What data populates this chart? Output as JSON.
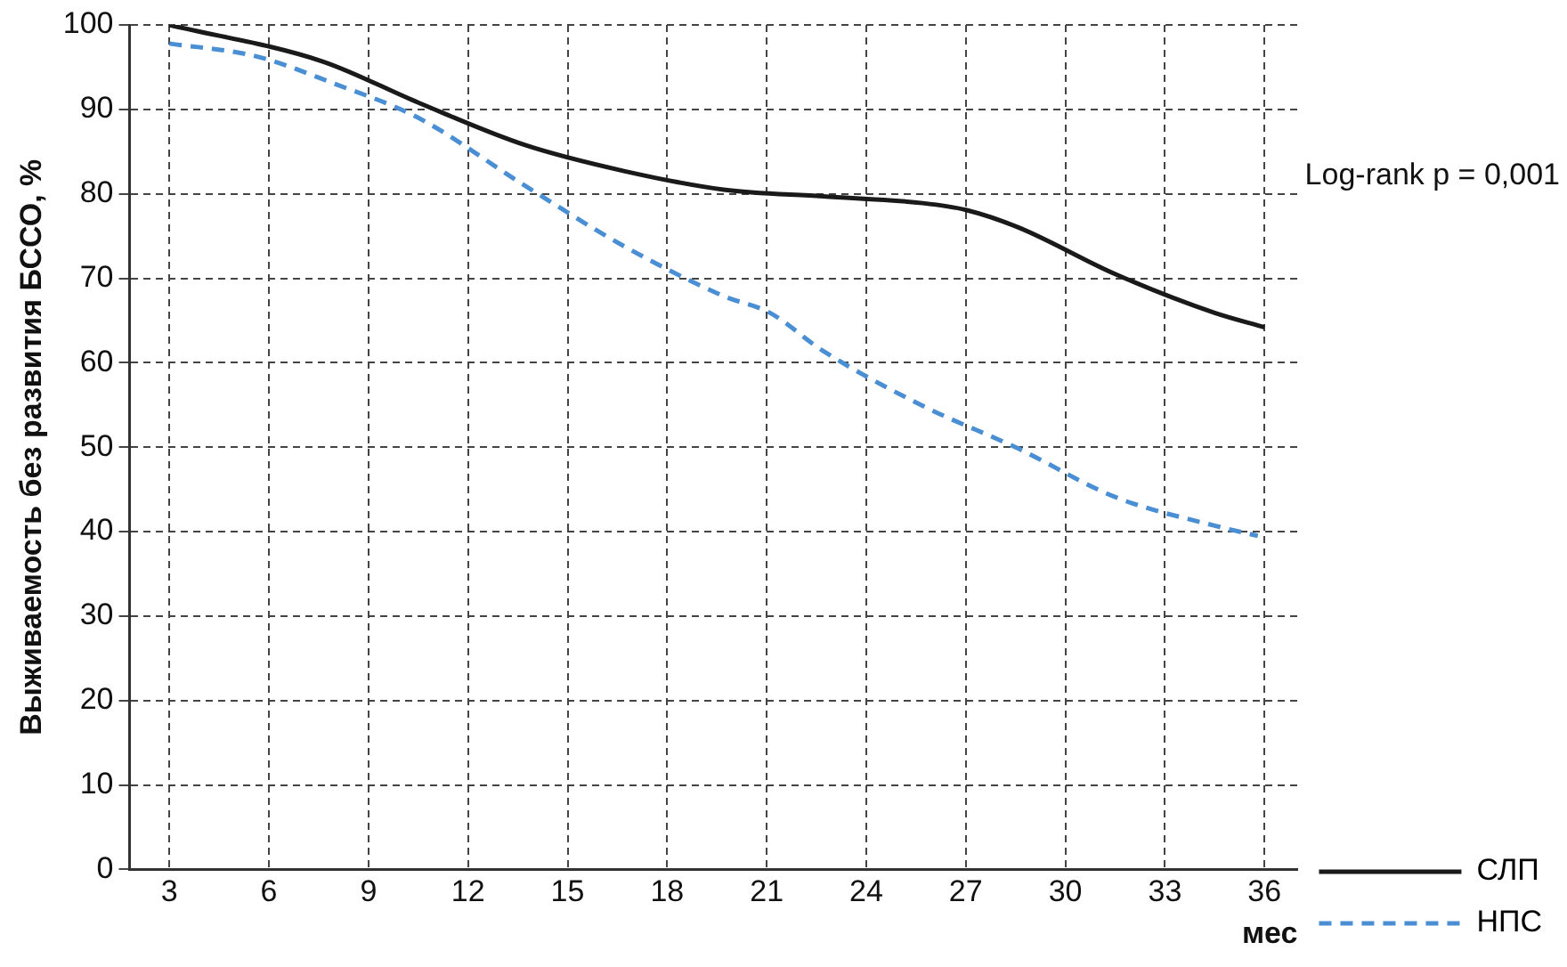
{
  "chart_data": {
    "type": "line",
    "ylabel": "Выживаемость без развития БССО, %",
    "xlabel": "мес",
    "annotations": [
      "Log-rank p = 0,001"
    ],
    "xlim": [
      1.8,
      37
    ],
    "xticks": [
      3,
      6,
      9,
      12,
      15,
      18,
      21,
      24,
      27,
      30,
      33,
      36
    ],
    "ylim": [
      0,
      100
    ],
    "yticks": [
      0,
      10,
      20,
      30,
      40,
      50,
      60,
      70,
      80,
      90,
      100
    ],
    "grid": true,
    "legend": "bottom right",
    "marker": "none",
    "series": [
      {
        "name": "СЛП",
        "color": "#1a1a1a",
        "line_style": "solid",
        "x": [
          3,
          7.6,
          10.5,
          13.7,
          16.7,
          19.7,
          22.7,
          25.7,
          27,
          28.6,
          31.5,
          34.5,
          36
        ],
        "values": [
          100,
          95.7,
          90.8,
          85.8,
          82.7,
          80.5,
          79.7,
          78.9,
          78.1,
          76,
          70.5,
          65.9,
          64.2
        ]
      },
      {
        "name": "НПС",
        "color": "#4a8fd4",
        "line_style": "dashed",
        "x": [
          3,
          5.6,
          8,
          10.5,
          13.7,
          16.7,
          19.7,
          21.1,
          22.7,
          25.7,
          28.6,
          31.5,
          34.5,
          35.8
        ],
        "values": [
          97.8,
          96.3,
          93,
          89,
          81,
          73.8,
          67.9,
          65.9,
          61.4,
          54.9,
          49.8,
          44.1,
          40.7,
          39.5
        ]
      }
    ]
  }
}
